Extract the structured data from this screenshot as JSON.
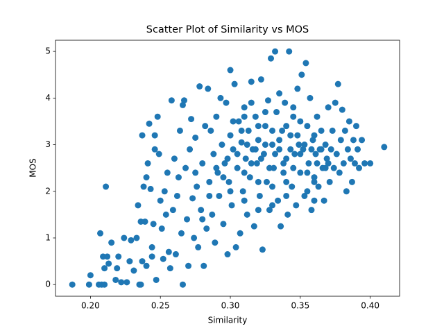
{
  "chart_data": {
    "type": "scatter",
    "title": "Scatter Plot of Similarity vs MOS",
    "x_label": "Similarity",
    "y_label": "MOS",
    "color": "#1f77b4",
    "xlim": [
      0.175,
      0.421
    ],
    "ylim": [
      -0.25,
      5.24
    ],
    "xticks": [
      {
        "value": 0.2,
        "label": "0.20"
      },
      {
        "value": 0.25,
        "label": "0.25"
      },
      {
        "value": 0.3,
        "label": "0.30"
      },
      {
        "value": 0.35,
        "label": "0.35"
      },
      {
        "value": 0.4,
        "label": "0.40"
      }
    ],
    "yticks": [
      0,
      1,
      2,
      3,
      4,
      5
    ],
    "x": [
      0.187,
      0.199,
      0.2,
      0.206,
      0.208,
      0.21,
      0.207,
      0.209,
      0.212,
      0.21,
      0.213,
      0.215,
      0.211,
      0.218,
      0.22,
      0.219,
      0.222,
      0.224,
      0.226,
      0.228,
      0.229,
      0.231,
      0.233,
      0.234,
      0.235,
      0.236,
      0.237,
      0.236,
      0.238,
      0.237,
      0.239,
      0.24,
      0.24,
      0.241,
      0.242,
      0.243,
      0.244,
      0.244,
      0.245,
      0.246,
      0.246,
      0.247,
      0.248,
      0.249,
      0.25,
      0.251,
      0.252,
      0.253,
      0.254,
      0.255,
      0.256,
      0.257,
      0.258,
      0.259,
      0.26,
      0.261,
      0.262,
      0.263,
      0.264,
      0.265,
      0.266,
      0.266,
      0.267,
      0.268,
      0.269,
      0.27,
      0.271,
      0.272,
      0.273,
      0.274,
      0.275,
      0.276,
      0.277,
      0.278,
      0.279,
      0.28,
      0.281,
      0.282,
      0.283,
      0.284,
      0.285,
      0.286,
      0.287,
      0.288,
      0.289,
      0.29,
      0.291,
      0.292,
      0.293,
      0.294,
      0.295,
      0.296,
      0.297,
      0.298,
      0.299,
      0.3,
      0.3,
      0.301,
      0.302,
      0.303,
      0.304,
      0.305,
      0.306,
      0.307,
      0.308,
      0.309,
      0.31,
      0.311,
      0.312,
      0.313,
      0.314,
      0.315,
      0.316,
      0.317,
      0.318,
      0.319,
      0.32,
      0.321,
      0.322,
      0.323,
      0.324,
      0.325,
      0.326,
      0.327,
      0.328,
      0.329,
      0.33,
      0.331,
      0.332,
      0.333,
      0.334,
      0.335,
      0.336,
      0.337,
      0.338,
      0.339,
      0.34,
      0.341,
      0.342,
      0.343,
      0.344,
      0.345,
      0.346,
      0.347,
      0.348,
      0.349,
      0.35,
      0.351,
      0.352,
      0.353,
      0.354,
      0.355,
      0.356,
      0.357,
      0.358,
      0.359,
      0.36,
      0.361,
      0.362,
      0.363,
      0.364,
      0.365,
      0.366,
      0.367,
      0.368,
      0.369,
      0.37,
      0.371,
      0.372,
      0.373,
      0.374,
      0.375,
      0.376,
      0.377,
      0.378,
      0.379,
      0.38,
      0.381,
      0.382,
      0.383,
      0.384,
      0.385,
      0.386,
      0.387,
      0.388,
      0.389,
      0.39,
      0.391,
      0.392,
      0.394,
      0.396,
      0.4,
      0.41,
      0.305,
      0.308,
      0.31,
      0.312,
      0.315,
      0.318,
      0.32,
      0.322,
      0.325,
      0.328,
      0.33,
      0.332,
      0.335,
      0.338,
      0.34,
      0.343,
      0.345,
      0.348,
      0.35,
      0.353,
      0.355,
      0.358,
      0.36,
      0.362,
      0.365,
      0.368,
      0.298,
      0.302,
      0.295,
      0.31,
      0.32,
      0.33,
      0.34,
      0.35,
      0.36,
      0.37,
      0.29,
      0.285,
      0.28,
      0.275,
      0.3,
      0.31,
      0.32,
      0.33,
      0.34,
      0.355,
      0.36,
      0.315,
      0.325,
      0.335,
      0.345
    ],
    "values": [
      0,
      0,
      0.2,
      0,
      0,
      0,
      1.1,
      0.6,
      0.6,
      0.35,
      0.45,
      0.9,
      2.1,
      0.1,
      0.6,
      0.35,
      0.05,
      1.0,
      0.05,
      0.5,
      0.95,
      0.3,
      1.0,
      1.7,
      0,
      0,
      0.5,
      1.35,
      2.1,
      3.2,
      1.35,
      0.4,
      2.3,
      2.6,
      3.45,
      2.05,
      0.8,
      0.6,
      1.3,
      2.9,
      3.2,
      0.1,
      3.6,
      2.8,
      1.8,
      1.2,
      0.55,
      2.0,
      1.5,
      2.4,
      0.7,
      0.35,
      3.95,
      1.6,
      2.7,
      0.65,
      1.9,
      2.3,
      3.3,
      1.1,
      0,
      3.85,
      3.95,
      2.5,
      1.4,
      0.4,
      2.9,
      3.55,
      1.85,
      1.0,
      3.15,
      2.1,
      0.8,
      4.25,
      1.6,
      2.6,
      0.4,
      3.4,
      1.2,
      4.2,
      2.2,
      3.3,
      1.5,
      2.8,
      0.9,
      3.6,
      2.4,
      1.9,
      4.0,
      3.0,
      1.3,
      2.6,
      3.9,
      0.65,
      2.2,
      4.6,
      3.2,
      1.7,
      2.9,
      4.3,
      0.8,
      2.5,
      3.5,
      1.1,
      3.05,
      2.0,
      3.8,
      2.7,
      1.5,
      3.3,
      2.3,
      4.35,
      2.9,
      1.25,
      3.6,
      2.6,
      3.1,
      1.9,
      4.4,
      0.75,
      2.8,
      3.4,
      2.2,
      3.95,
      1.6,
      4.85,
      3.0,
      2.5,
      5.0,
      3.7,
      1.8,
      2.9,
      1.25,
      3.3,
      2.4,
      3.9,
      2.7,
      1.5,
      5.0,
      3.2,
      2.1,
      3.6,
      2.8,
      1.7,
      4.2,
      3.0,
      2.4,
      4.5,
      2.9,
      1.9,
      4.75,
      3.4,
      2.6,
      4.0,
      1.6,
      3.1,
      2.3,
      2.8,
      3.6,
      2.1,
      2.9,
      3.3,
      2.5,
      1.8,
      3.0,
      2.7,
      3.8,
      2.2,
      2.9,
      3.3,
      2.5,
      3.9,
      2.8,
      4.3,
      2.4,
      3.1,
      3.75,
      2.6,
      3.3,
      2.0,
      2.9,
      3.5,
      2.7,
      2.2,
      3.1,
      2.6,
      3.4,
      2.9,
      2.5,
      3.1,
      2.6,
      2.6,
      2.95,
      2.8,
      3.3,
      2.4,
      3.0,
      2.6,
      2.9,
      3.4,
      2.7,
      3.0,
      2.5,
      3.3,
      2.8,
      3.1,
      2.6,
      3.4,
      2.9,
      2.5,
      3.2,
      2.8,
      3.0,
      2.4,
      2.9,
      3.2,
      2.6,
      2.9,
      2.5,
      2.7,
      3.5,
      2.3,
      3.6,
      2.2,
      2.1,
      2.2,
      3.5,
      2.2,
      2.6,
      2.5,
      1.9,
      1.4,
      2.4,
      2.0,
      1.8,
      1.6,
      1.7,
      1.9,
      2.0,
      1.8,
      3.9,
      3.7,
      4.1,
      3.8
    ]
  }
}
